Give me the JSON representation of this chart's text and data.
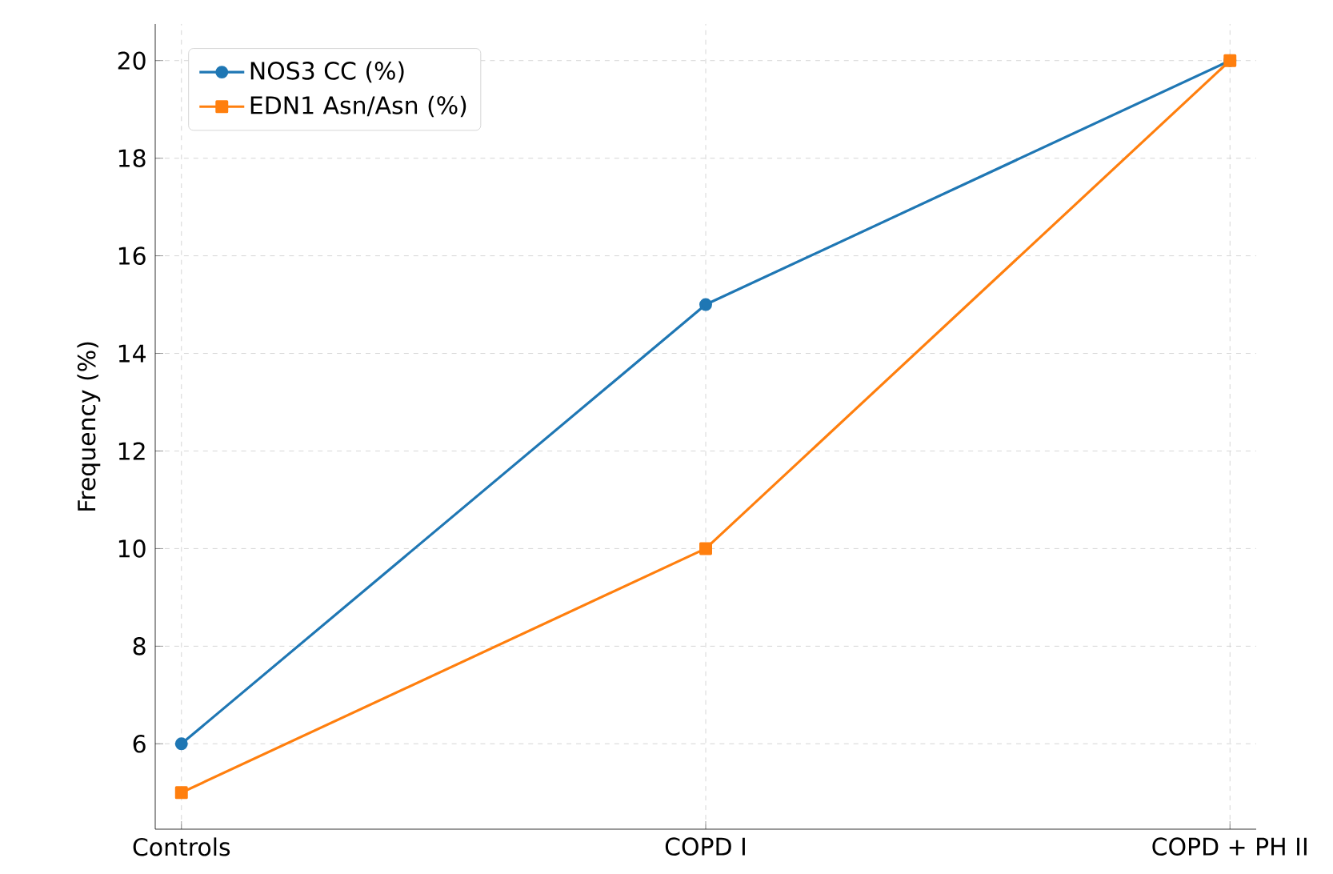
{
  "chart_data": {
    "type": "line",
    "ylabel": "Frequency (%)",
    "categories": [
      "Controls",
      "COPD I",
      "COPD + PH II"
    ],
    "series": [
      {
        "name": "NOS3 CC (%)",
        "color": "#1f77b4",
        "marker": "circle",
        "values": [
          6,
          15,
          20
        ]
      },
      {
        "name": "EDN1 Asn/Asn (%)",
        "color": "#ff7f0e",
        "marker": "square",
        "values": [
          5,
          10,
          20
        ]
      }
    ],
    "ylim": [
      4.25,
      20.75
    ],
    "yticks": [
      6,
      8,
      10,
      12,
      14,
      16,
      18,
      20
    ],
    "grid": true,
    "legend": "top left",
    "line_style": "solid"
  }
}
